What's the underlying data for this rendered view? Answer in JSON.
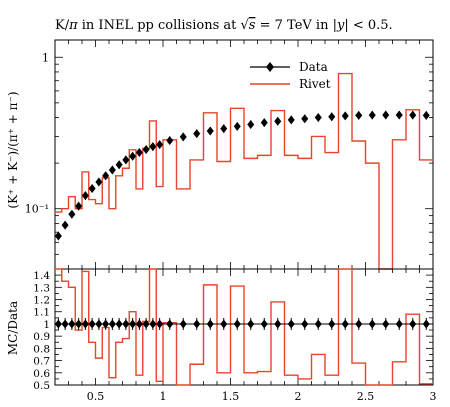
{
  "chart_data": {
    "type": "line",
    "title": "K/π in INEL pp collisions at √s = 7 TeV in |y| < 0.5.",
    "title_parts": {
      "prefix": "K/",
      "pi": "π",
      "middle": " in INEL pp collisions at ",
      "sqrt_s": "s",
      "energy": " = 7 TeV in |",
      "y": "y",
      "suffix": "| < 0.5."
    },
    "xlabel": "",
    "ylabel": "(K⁺ + K⁻)/(π⁺ + π⁻)",
    "ratio_ylabel": "MC/Data",
    "xlim": [
      0.2,
      3.0
    ],
    "ylim": [
      0.04,
      1.3
    ],
    "yscale": "log",
    "ratio_ylim": [
      0.5,
      1.45
    ],
    "x_ticks": [
      0.5,
      1,
      1.5,
      2,
      2.5,
      3
    ],
    "x_tick_labels": [
      "0.5",
      "1",
      "1.5",
      "2",
      "2.5",
      "3"
    ],
    "y_ticks": [
      0.1,
      1
    ],
    "y_tick_labels": [
      "10⁻¹",
      "1"
    ],
    "ratio_ticks": [
      0.5,
      0.6,
      0.7,
      0.8,
      0.9,
      1,
      1.1,
      1.2,
      1.3,
      1.4
    ],
    "ratio_tick_labels": [
      "0.5",
      "0.6",
      "0.7",
      "0.8",
      "0.9",
      "1",
      "1.1",
      "1.2",
      "1.3",
      "1.4"
    ],
    "legend_position": "top-right",
    "colors": {
      "data": "#000000",
      "rivet": "#e8442c"
    },
    "series": [
      {
        "name": "Data",
        "kind": "points",
        "x": [
          0.225,
          0.275,
          0.325,
          0.375,
          0.425,
          0.475,
          0.525,
          0.575,
          0.625,
          0.675,
          0.725,
          0.775,
          0.825,
          0.875,
          0.925,
          0.975,
          1.05,
          1.15,
          1.25,
          1.35,
          1.45,
          1.55,
          1.65,
          1.75,
          1.85,
          1.95,
          2.05,
          2.15,
          2.25,
          2.35,
          2.45,
          2.55,
          2.65,
          2.75,
          2.85,
          2.95
        ],
        "values": [
          0.066,
          0.078,
          0.092,
          0.104,
          0.122,
          0.136,
          0.15,
          0.165,
          0.18,
          0.195,
          0.21,
          0.222,
          0.235,
          0.246,
          0.257,
          0.265,
          0.282,
          0.298,
          0.313,
          0.326,
          0.338,
          0.35,
          0.36,
          0.37,
          0.378,
          0.386,
          0.393,
          0.4,
          0.405,
          0.41,
          0.413,
          0.415,
          0.416,
          0.416,
          0.415,
          0.413
        ],
        "ratio": [
          1,
          1,
          1,
          1,
          1,
          1,
          1,
          1,
          1,
          1,
          1,
          1,
          1,
          1,
          1,
          1,
          1,
          1,
          1,
          1,
          1,
          1,
          1,
          1,
          1,
          1,
          1,
          1,
          1,
          1,
          1,
          1,
          1,
          1,
          1,
          1
        ]
      },
      {
        "name": "Rivet",
        "kind": "histogram",
        "bin_edges": [
          0.2,
          0.25,
          0.3,
          0.35,
          0.4,
          0.45,
          0.5,
          0.55,
          0.6,
          0.65,
          0.7,
          0.75,
          0.8,
          0.85,
          0.9,
          0.95,
          1.0,
          1.1,
          1.2,
          1.3,
          1.4,
          1.5,
          1.6,
          1.7,
          1.8,
          1.9,
          2.0,
          2.1,
          2.2,
          2.3,
          2.4,
          2.5,
          2.6,
          2.7,
          2.8,
          2.9,
          3.0
        ],
        "values": [
          0.095,
          0.1,
          0.12,
          0.1,
          0.175,
          0.115,
          0.108,
          0.16,
          0.1,
          0.165,
          0.185,
          0.245,
          0.135,
          0.25,
          0.38,
          0.14,
          0.285,
          0.135,
          0.21,
          0.43,
          0.205,
          0.46,
          0.215,
          0.225,
          0.445,
          0.225,
          0.215,
          0.3,
          0.235,
          0.78,
          0.28,
          0.2,
          0.0,
          0.285,
          0.45,
          0.21
        ],
        "ratio": [
          1.45,
          1.35,
          1.3,
          0.95,
          1.43,
          0.85,
          0.72,
          0.97,
          0.56,
          0.85,
          0.88,
          1.1,
          0.58,
          1.02,
          1.48,
          0.53,
          1.01,
          0.45,
          0.67,
          1.32,
          0.6,
          1.31,
          0.6,
          0.61,
          1.18,
          0.58,
          0.55,
          0.75,
          0.58,
          1.9,
          0.68,
          0.48,
          0.0,
          0.69,
          1.08,
          0.51
        ]
      }
    ]
  }
}
